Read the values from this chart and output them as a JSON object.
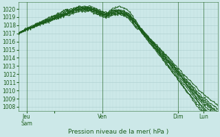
{
  "xlabel": "Pression niveau de la mer( hPa )",
  "bg_color": "#cce8e8",
  "grid_color_major": "#aacccc",
  "grid_color_minor": "#bbdddd",
  "line_color": "#1a5c1a",
  "ylim": [
    1007.5,
    1020.8
  ],
  "yticks": [
    1008,
    1009,
    1010,
    1011,
    1012,
    1013,
    1014,
    1015,
    1016,
    1017,
    1018,
    1019,
    1020
  ],
  "xtick_positions": [
    0.04,
    0.18,
    0.42,
    0.8,
    0.93
  ],
  "xtick_labels": [
    "Jeu\nSam",
    "",
    "Ven",
    "Dim",
    "Lun"
  ],
  "vline_positions": [
    0.04,
    0.42,
    0.8,
    0.93
  ],
  "num_points": 200,
  "seed": 10
}
